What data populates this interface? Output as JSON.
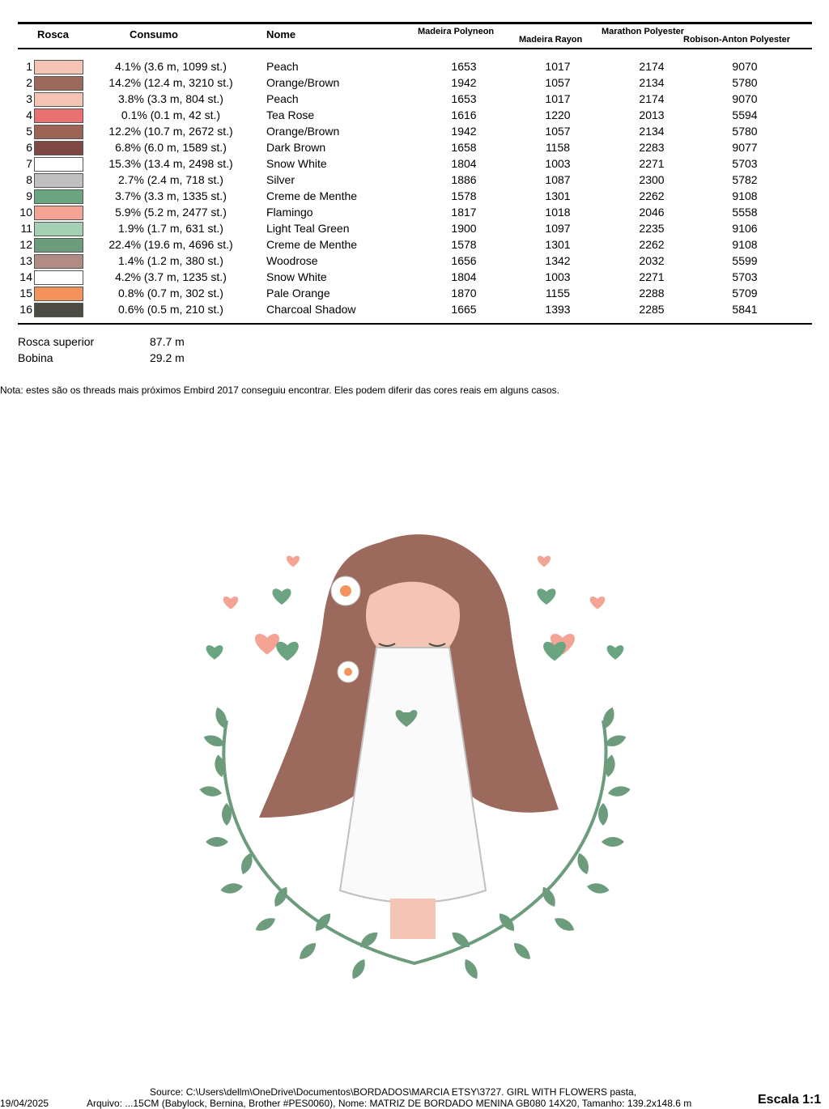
{
  "header": {
    "rosca": "Rosca",
    "consumo": "Consumo",
    "nome": "Nome",
    "madeira_polyneon": "Madeira Polyneon",
    "madeira_rayon": "Madeira Rayon",
    "marathon": "Marathon Polyester",
    "robison": "Robison-Anton Polyester"
  },
  "rows": [
    {
      "n": "1",
      "color": "#f4c4b4",
      "consumo": "4.1% (3.6 m, 1099 st.)",
      "nome": "Peach",
      "mp": "1653",
      "mr": "1017",
      "ma": "2174",
      "ra": "9070"
    },
    {
      "n": "2",
      "color": "#9c6a5c",
      "consumo": "14.2% (12.4 m, 3210 st.)",
      "nome": "Orange/Brown",
      "mp": "1942",
      "mr": "1057",
      "ma": "2134",
      "ra": "5780"
    },
    {
      "n": "3",
      "color": "#f4c4b4",
      "consumo": "3.8% (3.3 m, 804 st.)",
      "nome": "Peach",
      "mp": "1653",
      "mr": "1017",
      "ma": "2174",
      "ra": "9070"
    },
    {
      "n": "4",
      "color": "#e87272",
      "consumo": "0.1% (0.1 m, 42 st.)",
      "nome": "Tea Rose",
      "mp": "1616",
      "mr": "1220",
      "ma": "2013",
      "ra": "5594"
    },
    {
      "n": "5",
      "color": "#9c6454",
      "consumo": "12.2% (10.7 m, 2672 st.)",
      "nome": "Orange/Brown",
      "mp": "1942",
      "mr": "1057",
      "ma": "2134",
      "ra": "5780"
    },
    {
      "n": "6",
      "color": "#804844",
      "consumo": "6.8% (6.0 m, 1589 st.)",
      "nome": "Dark Brown",
      "mp": "1658",
      "mr": "1158",
      "ma": "2283",
      "ra": "9077"
    },
    {
      "n": "7",
      "color": "#ffffff",
      "consumo": "15.3% (13.4 m, 2498 st.)",
      "nome": "Snow White",
      "mp": "1804",
      "mr": "1003",
      "ma": "2271",
      "ra": "5703"
    },
    {
      "n": "8",
      "color": "#c0c0c0",
      "consumo": "2.7% (2.4 m, 718 st.)",
      "nome": "Silver",
      "mp": "1886",
      "mr": "1087",
      "ma": "2300",
      "ra": "5782"
    },
    {
      "n": "9",
      "color": "#6aa480",
      "consumo": "3.7% (3.3 m, 1335 st.)",
      "nome": "Creme de Menthe",
      "mp": "1578",
      "mr": "1301",
      "ma": "2262",
      "ra": "9108"
    },
    {
      "n": "10",
      "color": "#f4a494",
      "consumo": "5.9% (5.2 m, 2477 st.)",
      "nome": "Flamingo",
      "mp": "1817",
      "mr": "1018",
      "ma": "2046",
      "ra": "5558"
    },
    {
      "n": "11",
      "color": "#a4d0b4",
      "consumo": "1.9% (1.7 m, 631 st.)",
      "nome": "Light Teal Green",
      "mp": "1900",
      "mr": "1097",
      "ma": "2235",
      "ra": "9106"
    },
    {
      "n": "12",
      "color": "#6c9c7c",
      "consumo": "22.4% (19.6 m, 4696 st.)",
      "nome": "Creme de Menthe",
      "mp": "1578",
      "mr": "1301",
      "ma": "2262",
      "ra": "9108"
    },
    {
      "n": "13",
      "color": "#b08c84",
      "consumo": "1.4% (1.2 m, 380 st.)",
      "nome": "Woodrose",
      "mp": "1656",
      "mr": "1342",
      "ma": "2032",
      "ra": "5599"
    },
    {
      "n": "14",
      "color": "#ffffff",
      "consumo": "4.2% (3.7 m, 1235 st.)",
      "nome": "Snow White",
      "mp": "1804",
      "mr": "1003",
      "ma": "2271",
      "ra": "5703"
    },
    {
      "n": "15",
      "color": "#f4945c",
      "consumo": "0.8% (0.7 m, 302 st.)",
      "nome": "Pale Orange",
      "mp": "1870",
      "mr": "1155",
      "ma": "2288",
      "ra": "5709"
    },
    {
      "n": "16",
      "color": "#4c4c44",
      "consumo": "0.6% (0.5 m, 210 st.)",
      "nome": "Charcoal Shadow",
      "mp": "1665",
      "mr": "1393",
      "ma": "2285",
      "ra": "5841"
    }
  ],
  "totals": {
    "top_label": "Rosca superior",
    "top_value": "87.7 m",
    "bobbin_label": "Bobina",
    "bobbin_value": "29.2 m"
  },
  "note": "Nota: estes são os threads mais próximos Embird 2017 conseguiu encontrar. Eles podem diferir das cores reais em alguns casos.",
  "footer": {
    "date": "19/04/2025",
    "source": "Source: C:\\Users\\dellm\\OneDrive\\Documentos\\BORDADOS\\MARCIA ETSY\\3727. GIRL WITH FLOWERS pasta,",
    "file": "Arquivo: ...15CM (Babylock, Bernina, Brother #PES0060), Nome: MATRIZ DE BORDADO MENINA GB080 14X20, Tamanho: 139.2x148.6 m",
    "scale": "Escala 1:1"
  }
}
